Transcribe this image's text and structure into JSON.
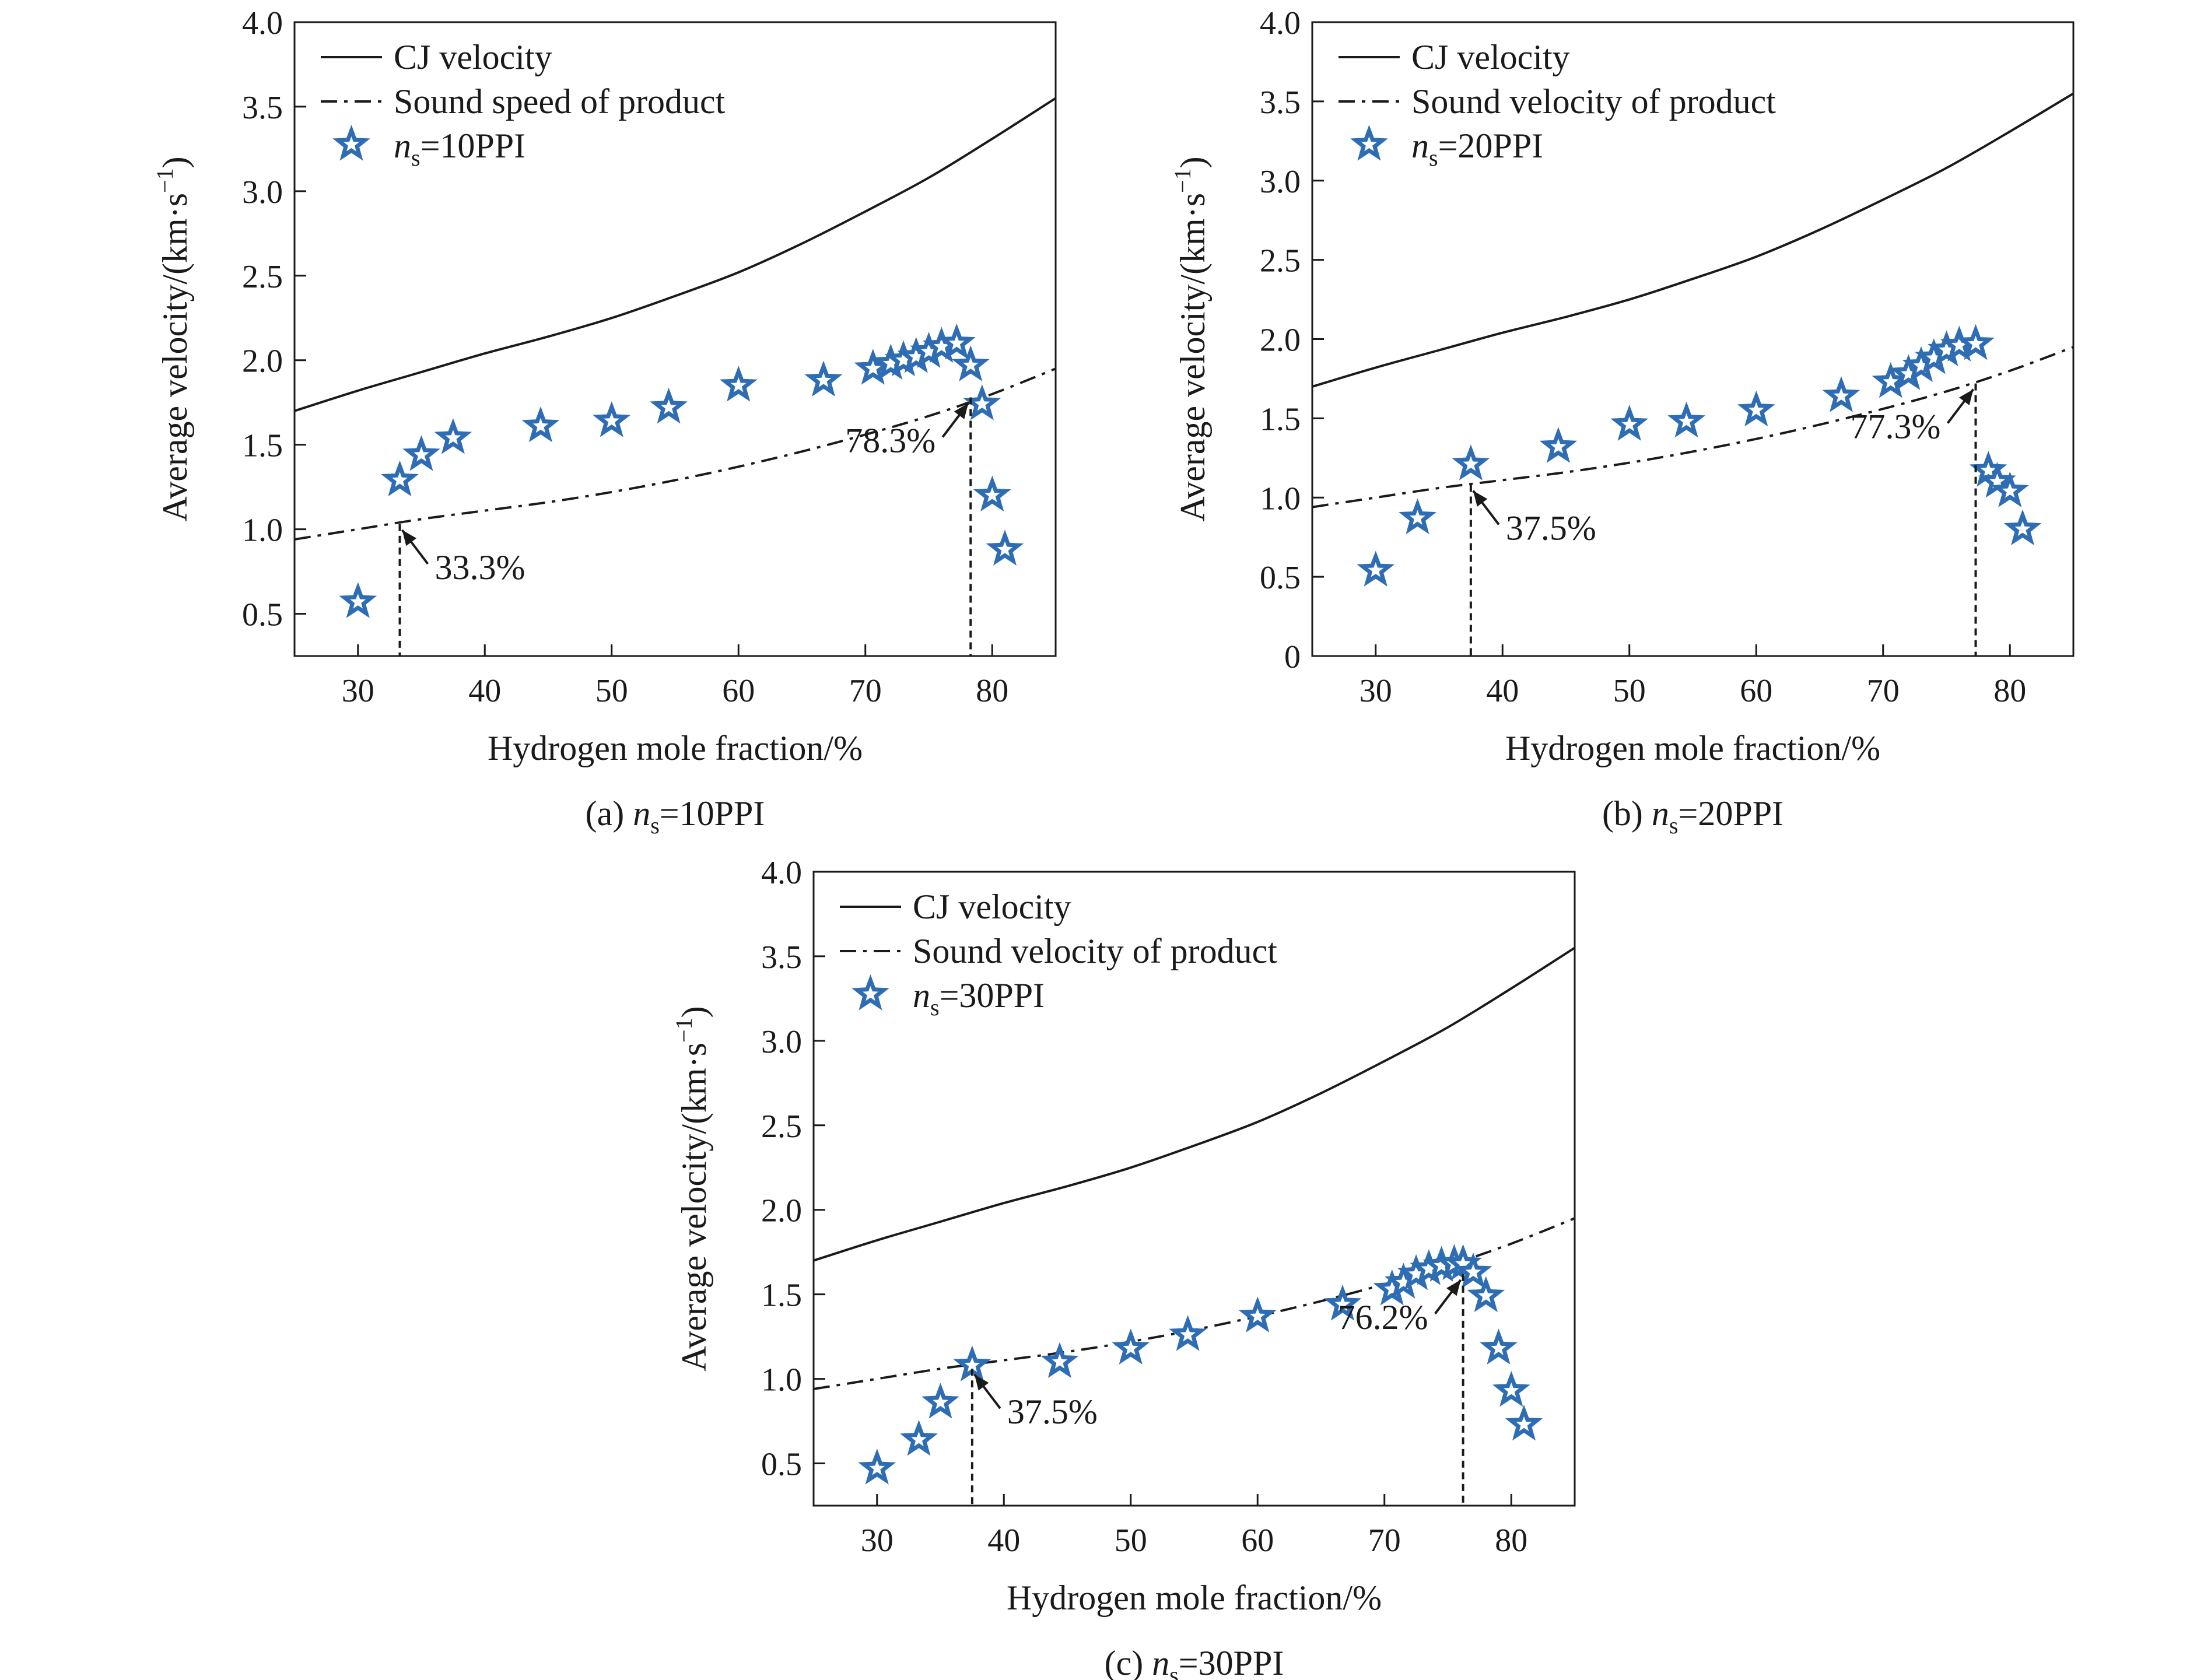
{
  "chart_data": [
    {
      "type": "line",
      "panel": "a",
      "caption": {
        "prefix": "(a) ",
        "var": "n",
        "sub": "s",
        "suffix": "=10PPI"
      },
      "xlabel": "Hydrogen mole fraction/%",
      "ylabel": {
        "main": "Average velocity/(km·s",
        "sup": "−1",
        "end": ")"
      },
      "xlim": [
        25,
        85
      ],
      "ylim": [
        0.25,
        4.0
      ],
      "xticks": [
        30,
        40,
        50,
        60,
        70,
        80
      ],
      "yticks": [
        0.5,
        1.0,
        1.5,
        2.0,
        2.5,
        3.0,
        3.5,
        4.0
      ],
      "ytick_labels": [
        "0.5",
        "1.0",
        "1.5",
        "2.0",
        "2.5",
        "3.0",
        "3.5",
        "4.0"
      ],
      "legend": {
        "position": "top-left",
        "items": [
          "CJ velocity",
          "Sound speed of product"
        ],
        "star_label": {
          "var": "n",
          "sub": "s",
          "suffix": "=10PPI"
        }
      },
      "series": [
        {
          "name": "CJ velocity",
          "style": "solid",
          "x": [
            25,
            30,
            35,
            40,
            45,
            50,
            55,
            60,
            65,
            70,
            75,
            80,
            85
          ],
          "y": [
            1.7,
            1.82,
            1.93,
            2.04,
            2.14,
            2.25,
            2.38,
            2.52,
            2.69,
            2.88,
            3.08,
            3.31,
            3.55
          ]
        },
        {
          "name": "Sound speed of product",
          "style": "dashdot",
          "x": [
            25,
            30,
            35,
            40,
            45,
            50,
            55,
            60,
            65,
            70,
            75,
            80,
            85
          ],
          "y": [
            0.94,
            1.0,
            1.06,
            1.11,
            1.16,
            1.22,
            1.29,
            1.37,
            1.46,
            1.56,
            1.67,
            1.8,
            1.95
          ]
        },
        {
          "name": "ns=10PPI",
          "style": "star",
          "x": [
            30,
            33.3,
            35,
            37.5,
            44.4,
            50,
            54.5,
            60,
            66.7,
            70.6,
            72,
            73,
            74,
            75,
            76,
            77.2,
            78.3,
            79.2,
            80,
            81
          ],
          "y": [
            0.57,
            1.29,
            1.44,
            1.54,
            1.61,
            1.64,
            1.72,
            1.85,
            1.88,
            1.95,
            1.98,
            2.0,
            2.02,
            2.05,
            2.08,
            2.1,
            1.97,
            1.74,
            1.2,
            0.88
          ]
        }
      ],
      "annotations": [
        {
          "text": "33.3%",
          "x": 33.3,
          "y": 1.03
        },
        {
          "text": "78.3%",
          "x": 78.3,
          "y": 1.78
        }
      ]
    },
    {
      "type": "line",
      "panel": "b",
      "caption": {
        "prefix": "(b) ",
        "var": "n",
        "sub": "s",
        "suffix": "=20PPI"
      },
      "xlabel": "Hydrogen mole fraction/%",
      "ylabel": {
        "main": "Average velocity/(km·s",
        "sup": "−1",
        "end": ")"
      },
      "xlim": [
        25,
        85
      ],
      "ylim": [
        0,
        4.0
      ],
      "xticks": [
        30,
        40,
        50,
        60,
        70,
        80
      ],
      "yticks": [
        0,
        0.5,
        1.0,
        1.5,
        2.0,
        2.5,
        3.0,
        3.5,
        4.0
      ],
      "ytick_labels": [
        "0",
        "0.5",
        "1.0",
        "1.5",
        "2.0",
        "2.5",
        "3.0",
        "3.5",
        "4.0"
      ],
      "legend": {
        "position": "top-left",
        "items": [
          "CJ velocity",
          "Sound velocity of product"
        ],
        "star_label": {
          "var": "n",
          "sub": "s",
          "suffix": "=20PPI"
        }
      },
      "series": [
        {
          "name": "CJ velocity",
          "style": "solid",
          "x": [
            25,
            30,
            35,
            40,
            45,
            50,
            55,
            60,
            65,
            70,
            75,
            80,
            85
          ],
          "y": [
            1.7,
            1.82,
            1.93,
            2.04,
            2.14,
            2.25,
            2.38,
            2.52,
            2.69,
            2.88,
            3.08,
            3.31,
            3.55
          ]
        },
        {
          "name": "Sound velocity of product",
          "style": "dashdot",
          "x": [
            25,
            30,
            35,
            40,
            45,
            50,
            55,
            60,
            65,
            70,
            75,
            80,
            85
          ],
          "y": [
            0.94,
            1.0,
            1.06,
            1.11,
            1.16,
            1.22,
            1.29,
            1.37,
            1.46,
            1.56,
            1.67,
            1.8,
            1.95
          ]
        },
        {
          "name": "ns=20PPI",
          "style": "star",
          "x": [
            30,
            33.3,
            37.5,
            44.4,
            50,
            54.5,
            60,
            66.7,
            70.6,
            72,
            73,
            74,
            75,
            76,
            77.3,
            78.3,
            79,
            80,
            81
          ],
          "y": [
            0.54,
            0.87,
            1.21,
            1.32,
            1.46,
            1.48,
            1.55,
            1.64,
            1.73,
            1.78,
            1.83,
            1.88,
            1.93,
            1.96,
            1.97,
            1.17,
            1.1,
            1.04,
            0.8
          ]
        }
      ],
      "annotations": [
        {
          "text": "37.5%",
          "x": 37.5,
          "y": 1.08
        },
        {
          "text": "77.3%",
          "x": 77.3,
          "y": 1.72
        }
      ]
    },
    {
      "type": "line",
      "panel": "c",
      "caption": {
        "prefix": "(c) ",
        "var": "n",
        "sub": "s",
        "suffix": "=30PPI"
      },
      "xlabel": "Hydrogen mole fraction/%",
      "ylabel": {
        "main": "Average velocity/(km·s",
        "sup": "−1",
        "end": ")"
      },
      "xlim": [
        25,
        85
      ],
      "ylim": [
        0.25,
        4.0
      ],
      "xticks": [
        30,
        40,
        50,
        60,
        70,
        80
      ],
      "yticks": [
        0.5,
        1.0,
        1.5,
        2.0,
        2.5,
        3.0,
        3.5,
        4.0
      ],
      "ytick_labels": [
        "0.5",
        "1.0",
        "1.5",
        "2.0",
        "2.5",
        "3.0",
        "3.5",
        "4.0"
      ],
      "legend": {
        "position": "top-left",
        "items": [
          "CJ velocity",
          "Sound velocity of product"
        ],
        "star_label": {
          "var": "n",
          "sub": "s",
          "suffix": "=30PPI"
        }
      },
      "series": [
        {
          "name": "CJ velocity",
          "style": "solid",
          "x": [
            25,
            30,
            35,
            40,
            45,
            50,
            55,
            60,
            65,
            70,
            75,
            80,
            85
          ],
          "y": [
            1.7,
            1.82,
            1.93,
            2.04,
            2.14,
            2.25,
            2.38,
            2.52,
            2.69,
            2.88,
            3.08,
            3.31,
            3.55
          ]
        },
        {
          "name": "Sound velocity of product",
          "style": "dashdot",
          "x": [
            25,
            30,
            35,
            40,
            45,
            50,
            55,
            60,
            65,
            70,
            75,
            80,
            85
          ],
          "y": [
            0.94,
            1.0,
            1.06,
            1.11,
            1.16,
            1.22,
            1.29,
            1.37,
            1.46,
            1.56,
            1.67,
            1.8,
            1.95
          ]
        },
        {
          "name": "ns=30PPI",
          "style": "star",
          "x": [
            30,
            33.3,
            35,
            37.5,
            44.4,
            50,
            54.5,
            60,
            66.7,
            70.6,
            71.5,
            72.5,
            73.5,
            74.5,
            75.5,
            76.2,
            77,
            78,
            79,
            80,
            81
          ],
          "y": [
            0.47,
            0.64,
            0.86,
            1.08,
            1.1,
            1.18,
            1.26,
            1.37,
            1.44,
            1.53,
            1.57,
            1.62,
            1.65,
            1.67,
            1.68,
            1.68,
            1.63,
            1.49,
            1.18,
            0.93,
            0.73
          ]
        }
      ],
      "annotations": [
        {
          "text": "37.5%",
          "x": 37.5,
          "y": 1.06
        },
        {
          "text": "76.2%",
          "x": 76.2,
          "y": 1.62
        }
      ]
    }
  ],
  "colors": {
    "line": "#1a1a1a",
    "star_stroke": "#2e6db4",
    "star_fill": "#ffffff",
    "axis": "#1a1a1a"
  }
}
